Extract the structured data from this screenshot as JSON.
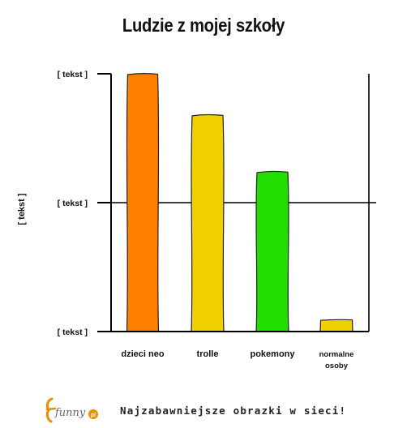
{
  "chart_data": {
    "type": "bar",
    "title": "Ludzie z mojej szkoły",
    "xlabel": "",
    "ylabel": "[ tekst ]",
    "ylim": [
      0,
      2
    ],
    "yticks": [
      {
        "value": 0,
        "label": "[ tekst ]"
      },
      {
        "value": 1,
        "label": "[ tekst ]"
      },
      {
        "value": 2,
        "label": "[ tekst ]"
      }
    ],
    "grid": "horizontal line at middle tick",
    "categories": [
      {
        "lines": [
          "dzieci neo"
        ]
      },
      {
        "lines": [
          "trolle"
        ]
      },
      {
        "lines": [
          "pokemony"
        ]
      },
      {
        "lines": [
          "normalne",
          "osoby"
        ]
      }
    ],
    "values": [
      2.0,
      1.68,
      1.24,
      0.09
    ],
    "colors": [
      "#ff7f00",
      "#f0d000",
      "#22dd00",
      "#f0d000"
    ]
  },
  "footer": {
    "tagline": "Najzabawniejsze obrazki w sieci!",
    "logo_text": "funny",
    "logo_badge": "pl"
  }
}
